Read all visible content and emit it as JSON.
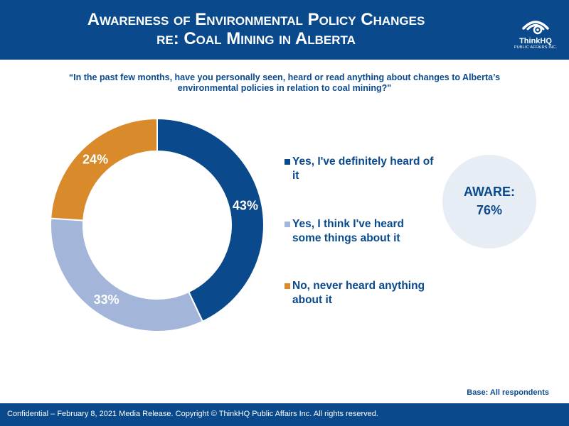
{
  "header": {
    "title_line1": "Awareness of Environmental Policy Changes",
    "title_line2": "re: Coal Mining in Alberta",
    "logo_name": "ThinkHQ",
    "logo_sub": "PUBLIC AFFAIRS INC."
  },
  "question": "“In the past few months, have you personally seen, heard or read anything about changes to Alberta’s environmental policies in relation to coal mining?\"",
  "chart_data": {
    "type": "pie",
    "variant": "donut",
    "categories": [
      "Yes, I've definitely heard of it",
      "Yes, I think I've heard some things about it",
      "No, never heard anything about it"
    ],
    "values": [
      43,
      33,
      24
    ],
    "labels": [
      "43%",
      "33%",
      "24%"
    ],
    "colors": [
      "#0a4a8c",
      "#a3b5d8",
      "#d98b2b"
    ],
    "legend_position": "right"
  },
  "legend": [
    {
      "label": "Yes, I've definitely heard of it",
      "color": "#0a4a8c"
    },
    {
      "label": "Yes, I think I've heard some things about it",
      "color": "#a3b5d8"
    },
    {
      "label": "No, never heard anything about it",
      "color": "#d98b2b"
    }
  ],
  "aware": {
    "label": "AWARE:",
    "value": "76%"
  },
  "base": "Base: All respondents",
  "footer": "Confidential – February 8, 2021 Media Release. Copyright © ThinkHQ Public Affairs Inc. All rights reserved.",
  "colors": {
    "brand": "#0a4a8c",
    "aware_bg": "#e6edf5"
  },
  "icons": {
    "logo": "eye-swirl-icon"
  }
}
